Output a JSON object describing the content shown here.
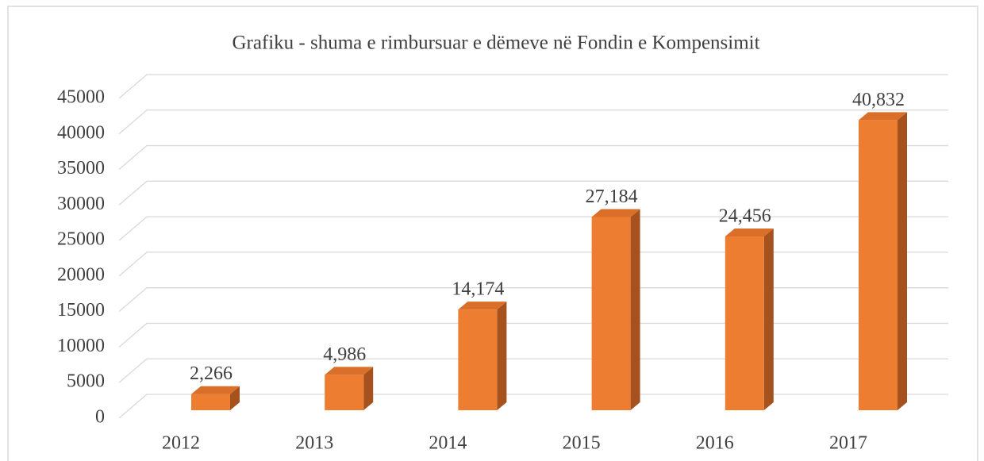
{
  "chart_data": {
    "type": "bar3d",
    "title": "Grafiku -  shuma e rimbursuar e dëmeve në Fondin e Kompensimit",
    "categories": [
      "2012",
      "2013",
      "2014",
      "2015",
      "2016",
      "2017"
    ],
    "values": [
      2266,
      4986,
      14174,
      27184,
      24456,
      40832
    ],
    "value_labels": [
      "2,266",
      "4,986",
      "14,174",
      "27,184",
      "24,456",
      "40,832"
    ],
    "color": "#ed7d31",
    "ylim": [
      0,
      45000
    ],
    "yticks": [
      0,
      5000,
      10000,
      15000,
      20000,
      25000,
      30000,
      35000,
      40000,
      45000
    ],
    "grid": true
  }
}
